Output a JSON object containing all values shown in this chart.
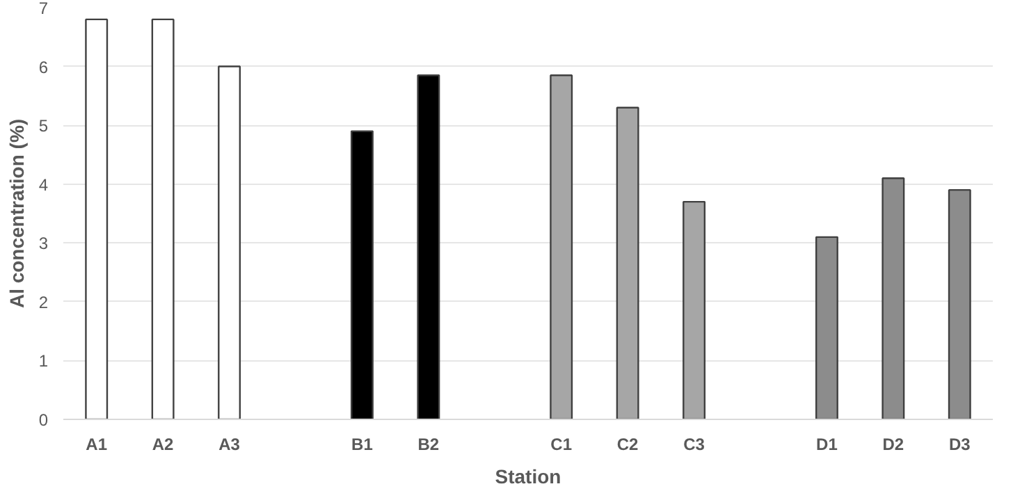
{
  "chart_data": {
    "type": "bar",
    "xlabel": "Station",
    "ylabel": "Al concentration (%)",
    "categories": [
      "A1",
      "A2",
      "A3",
      null,
      "B1",
      "B2",
      null,
      "C1",
      "C2",
      "C3",
      null,
      "D1",
      "D2",
      "D3"
    ],
    "values": [
      6.8,
      6.8,
      6.0,
      null,
      4.9,
      5.85,
      null,
      5.85,
      5.3,
      3.7,
      null,
      3.1,
      4.1,
      3.9
    ],
    "colors": [
      "#ffffff",
      "#ffffff",
      "#ffffff",
      null,
      "#000000",
      "#000000",
      null,
      "#a6a6a6",
      "#a6a6a6",
      "#a6a6a6",
      null,
      "#8c8c8c",
      "#8c8c8c",
      "#8c8c8c"
    ],
    "ylim": [
      0,
      7
    ],
    "yticks": [
      0,
      1,
      2,
      3,
      4,
      5,
      6,
      7
    ],
    "grid": "y"
  }
}
